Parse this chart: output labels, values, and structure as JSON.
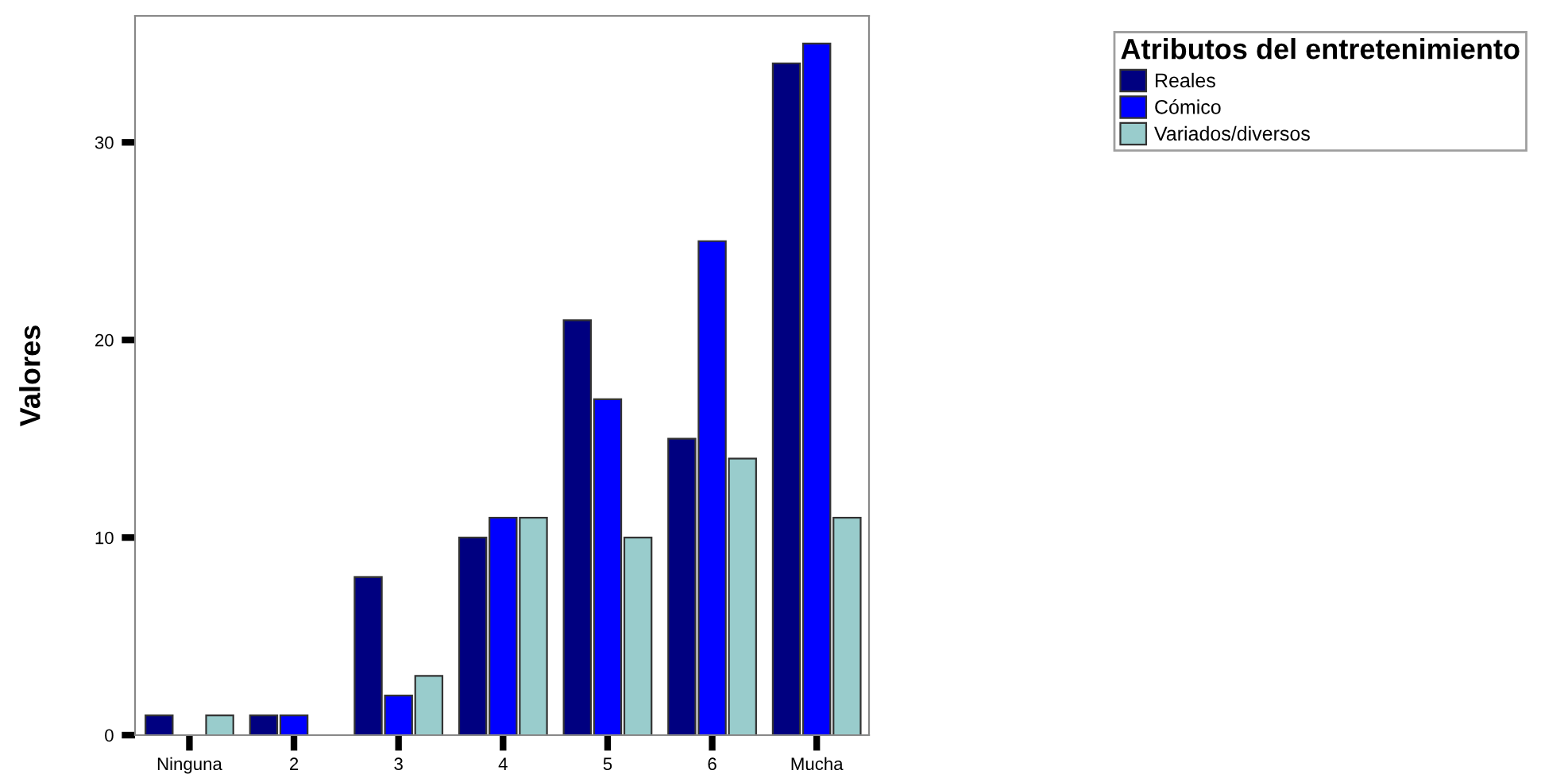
{
  "chart_data": {
    "type": "bar",
    "ylabel": "Valores",
    "legend_title": "Atributos del entretenimiento",
    "categories": [
      "Ninguna",
      "2",
      "3",
      "4",
      "5",
      "6",
      "Mucha"
    ],
    "series": [
      {
        "name": "Reales",
        "color": "#000080",
        "values": [
          1,
          1,
          8,
          10,
          21,
          15,
          34
        ]
      },
      {
        "name": "Cómico",
        "color": "#0000ff",
        "values": [
          null,
          1,
          2,
          11,
          17,
          25,
          35
        ]
      },
      {
        "name": "Variados/diversos",
        "color": "#99cccc",
        "values": [
          1,
          null,
          3,
          11,
          10,
          14,
          11
        ]
      }
    ],
    "ylim": [
      0,
      36.4
    ],
    "yticks": [
      0,
      10,
      20,
      30
    ],
    "grid": false,
    "legend": "top right"
  }
}
